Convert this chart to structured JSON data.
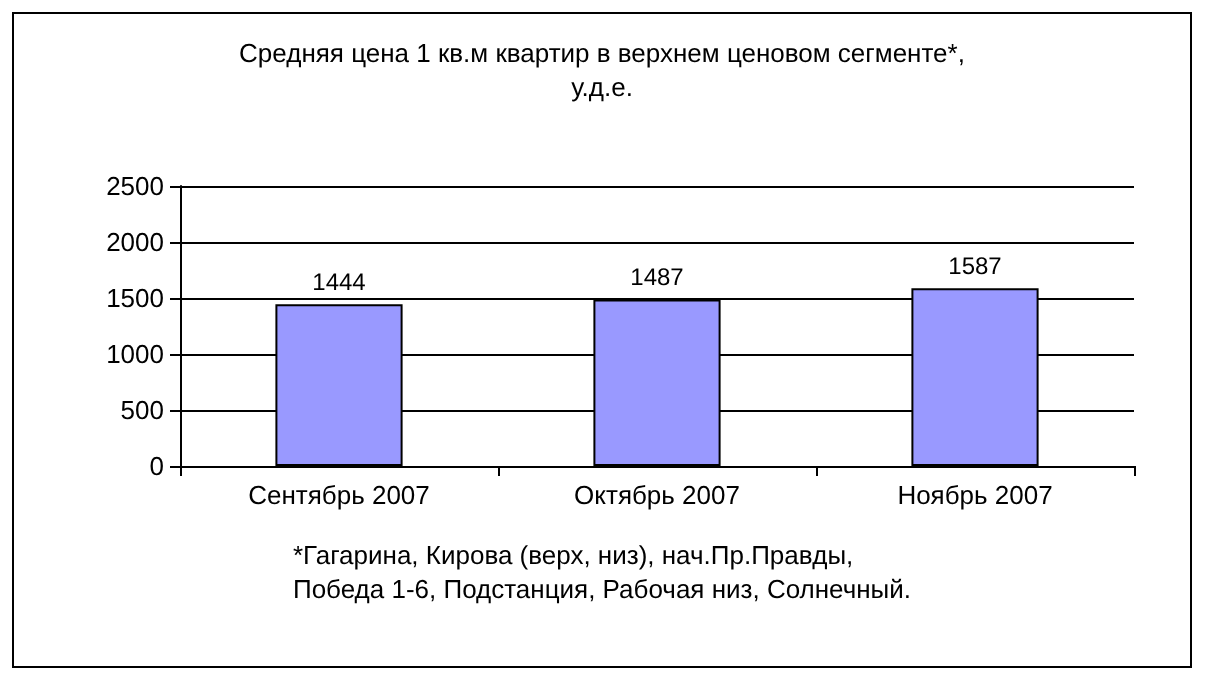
{
  "chart_data": {
    "type": "bar",
    "title": "Средняя цена 1 кв.м квартир в верхнем ценовом сегменте*,\nу.д.е.",
    "categories": [
      "Сентябрь 2007",
      "Октябрь 2007",
      "Ноябрь 2007"
    ],
    "values": [
      1444,
      1487,
      1587
    ],
    "color": "#9999ff",
    "ylim": [
      0,
      2500
    ],
    "yticks": [
      0,
      500,
      1000,
      1500,
      2000,
      2500
    ],
    "grid": "y",
    "data_labels": true,
    "annotations": [
      "*Гагарина, Кирова (верх, низ), нач.Пр.Правды,\nПобеда 1-6, Подстанция, Рабочая низ, Солнечный."
    ]
  }
}
